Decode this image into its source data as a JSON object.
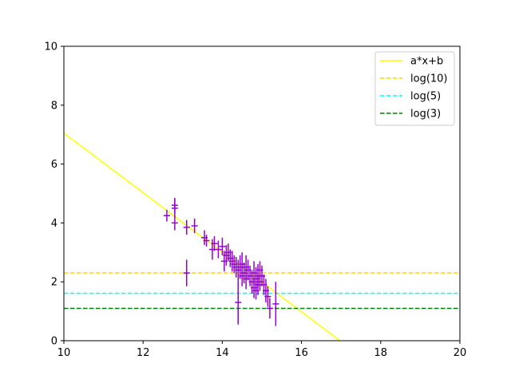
{
  "chart_data": {
    "type": "scatter",
    "title": "",
    "xlabel": "",
    "ylabel": "",
    "xlim": [
      10,
      20
    ],
    "ylim": [
      0,
      10
    ],
    "x_ticks": [
      "10",
      "12",
      "14",
      "16",
      "18",
      "20"
    ],
    "y_ticks": [
      "0",
      "2",
      "4",
      "6",
      "8",
      "10"
    ],
    "grid": false,
    "legend_position": "top-right",
    "fit_line": {
      "name": "a*x+b",
      "color": "#ffff00",
      "style": "solid",
      "x": [
        10,
        16.97
      ],
      "y": [
        7.05,
        0
      ]
    },
    "hlines": [
      {
        "name": "log(10)",
        "y": 2.303,
        "color": "#ffd700",
        "style": "dashed"
      },
      {
        "name": "log(5)",
        "y": 1.609,
        "color": "#00ffff",
        "style": "dashed"
      },
      {
        "name": "log(3)",
        "y": 1.099,
        "color": "#008000",
        "style": "dashed"
      }
    ],
    "points": {
      "color": "#9400d3",
      "x": [
        12.6,
        12.8,
        12.8,
        12.8,
        13.1,
        13.1,
        13.3,
        13.55,
        13.6,
        13.75,
        13.8,
        13.9,
        14.0,
        14.05,
        14.1,
        14.15,
        14.2,
        14.25,
        14.3,
        14.35,
        14.4,
        14.4,
        14.45,
        14.5,
        14.5,
        14.55,
        14.6,
        14.6,
        14.65,
        14.7,
        14.75,
        14.8,
        14.8,
        14.85,
        14.85,
        14.9,
        14.9,
        14.95,
        14.95,
        15.0,
        15.05,
        15.1,
        15.15,
        15.2,
        15.35
      ],
      "y": [
        4.25,
        4.5,
        4.6,
        4.0,
        3.85,
        2.3,
        3.9,
        3.5,
        3.4,
        3.1,
        3.3,
        3.1,
        3.2,
        2.7,
        2.9,
        3.0,
        2.8,
        2.7,
        2.6,
        2.5,
        2.4,
        1.3,
        2.5,
        2.6,
        2.2,
        2.3,
        2.5,
        2.1,
        2.4,
        2.2,
        2.0,
        2.3,
        1.8,
        2.1,
        1.7,
        2.2,
        1.9,
        2.4,
        2.0,
        2.2,
        1.9,
        1.7,
        1.5,
        1.1,
        1.25
      ],
      "yerr": [
        0.2,
        0.3,
        0.25,
        0.25,
        0.25,
        0.45,
        0.25,
        0.25,
        0.2,
        0.35,
        0.25,
        0.3,
        0.3,
        0.35,
        0.35,
        0.3,
        0.3,
        0.35,
        0.3,
        0.35,
        0.35,
        0.75,
        0.4,
        0.4,
        0.35,
        0.35,
        0.4,
        0.35,
        0.35,
        0.35,
        0.4,
        0.4,
        0.35,
        0.4,
        0.3,
        0.4,
        0.35,
        0.3,
        0.3,
        0.35,
        0.35,
        0.4,
        0.35,
        0.35,
        0.75
      ],
      "xerr": [
        0.08,
        0.08,
        0.08,
        0.08,
        0.08,
        0.08,
        0.08,
        0.08,
        0.08,
        0.08,
        0.08,
        0.08,
        0.08,
        0.08,
        0.08,
        0.08,
        0.08,
        0.08,
        0.08,
        0.08,
        0.08,
        0.08,
        0.08,
        0.08,
        0.08,
        0.08,
        0.08,
        0.08,
        0.08,
        0.08,
        0.08,
        0.08,
        0.08,
        0.08,
        0.08,
        0.08,
        0.08,
        0.08,
        0.08,
        0.08,
        0.08,
        0.08,
        0.08,
        0.08,
        0.08
      ]
    },
    "legend": [
      {
        "label": "a*x+b",
        "color": "#ffff00",
        "style": "solid"
      },
      {
        "label": "log(10)",
        "color": "#ffd700",
        "style": "dashed"
      },
      {
        "label": "log(5)",
        "color": "#00ffff",
        "style": "dashed"
      },
      {
        "label": "log(3)",
        "color": "#008000",
        "style": "dashed"
      }
    ]
  }
}
